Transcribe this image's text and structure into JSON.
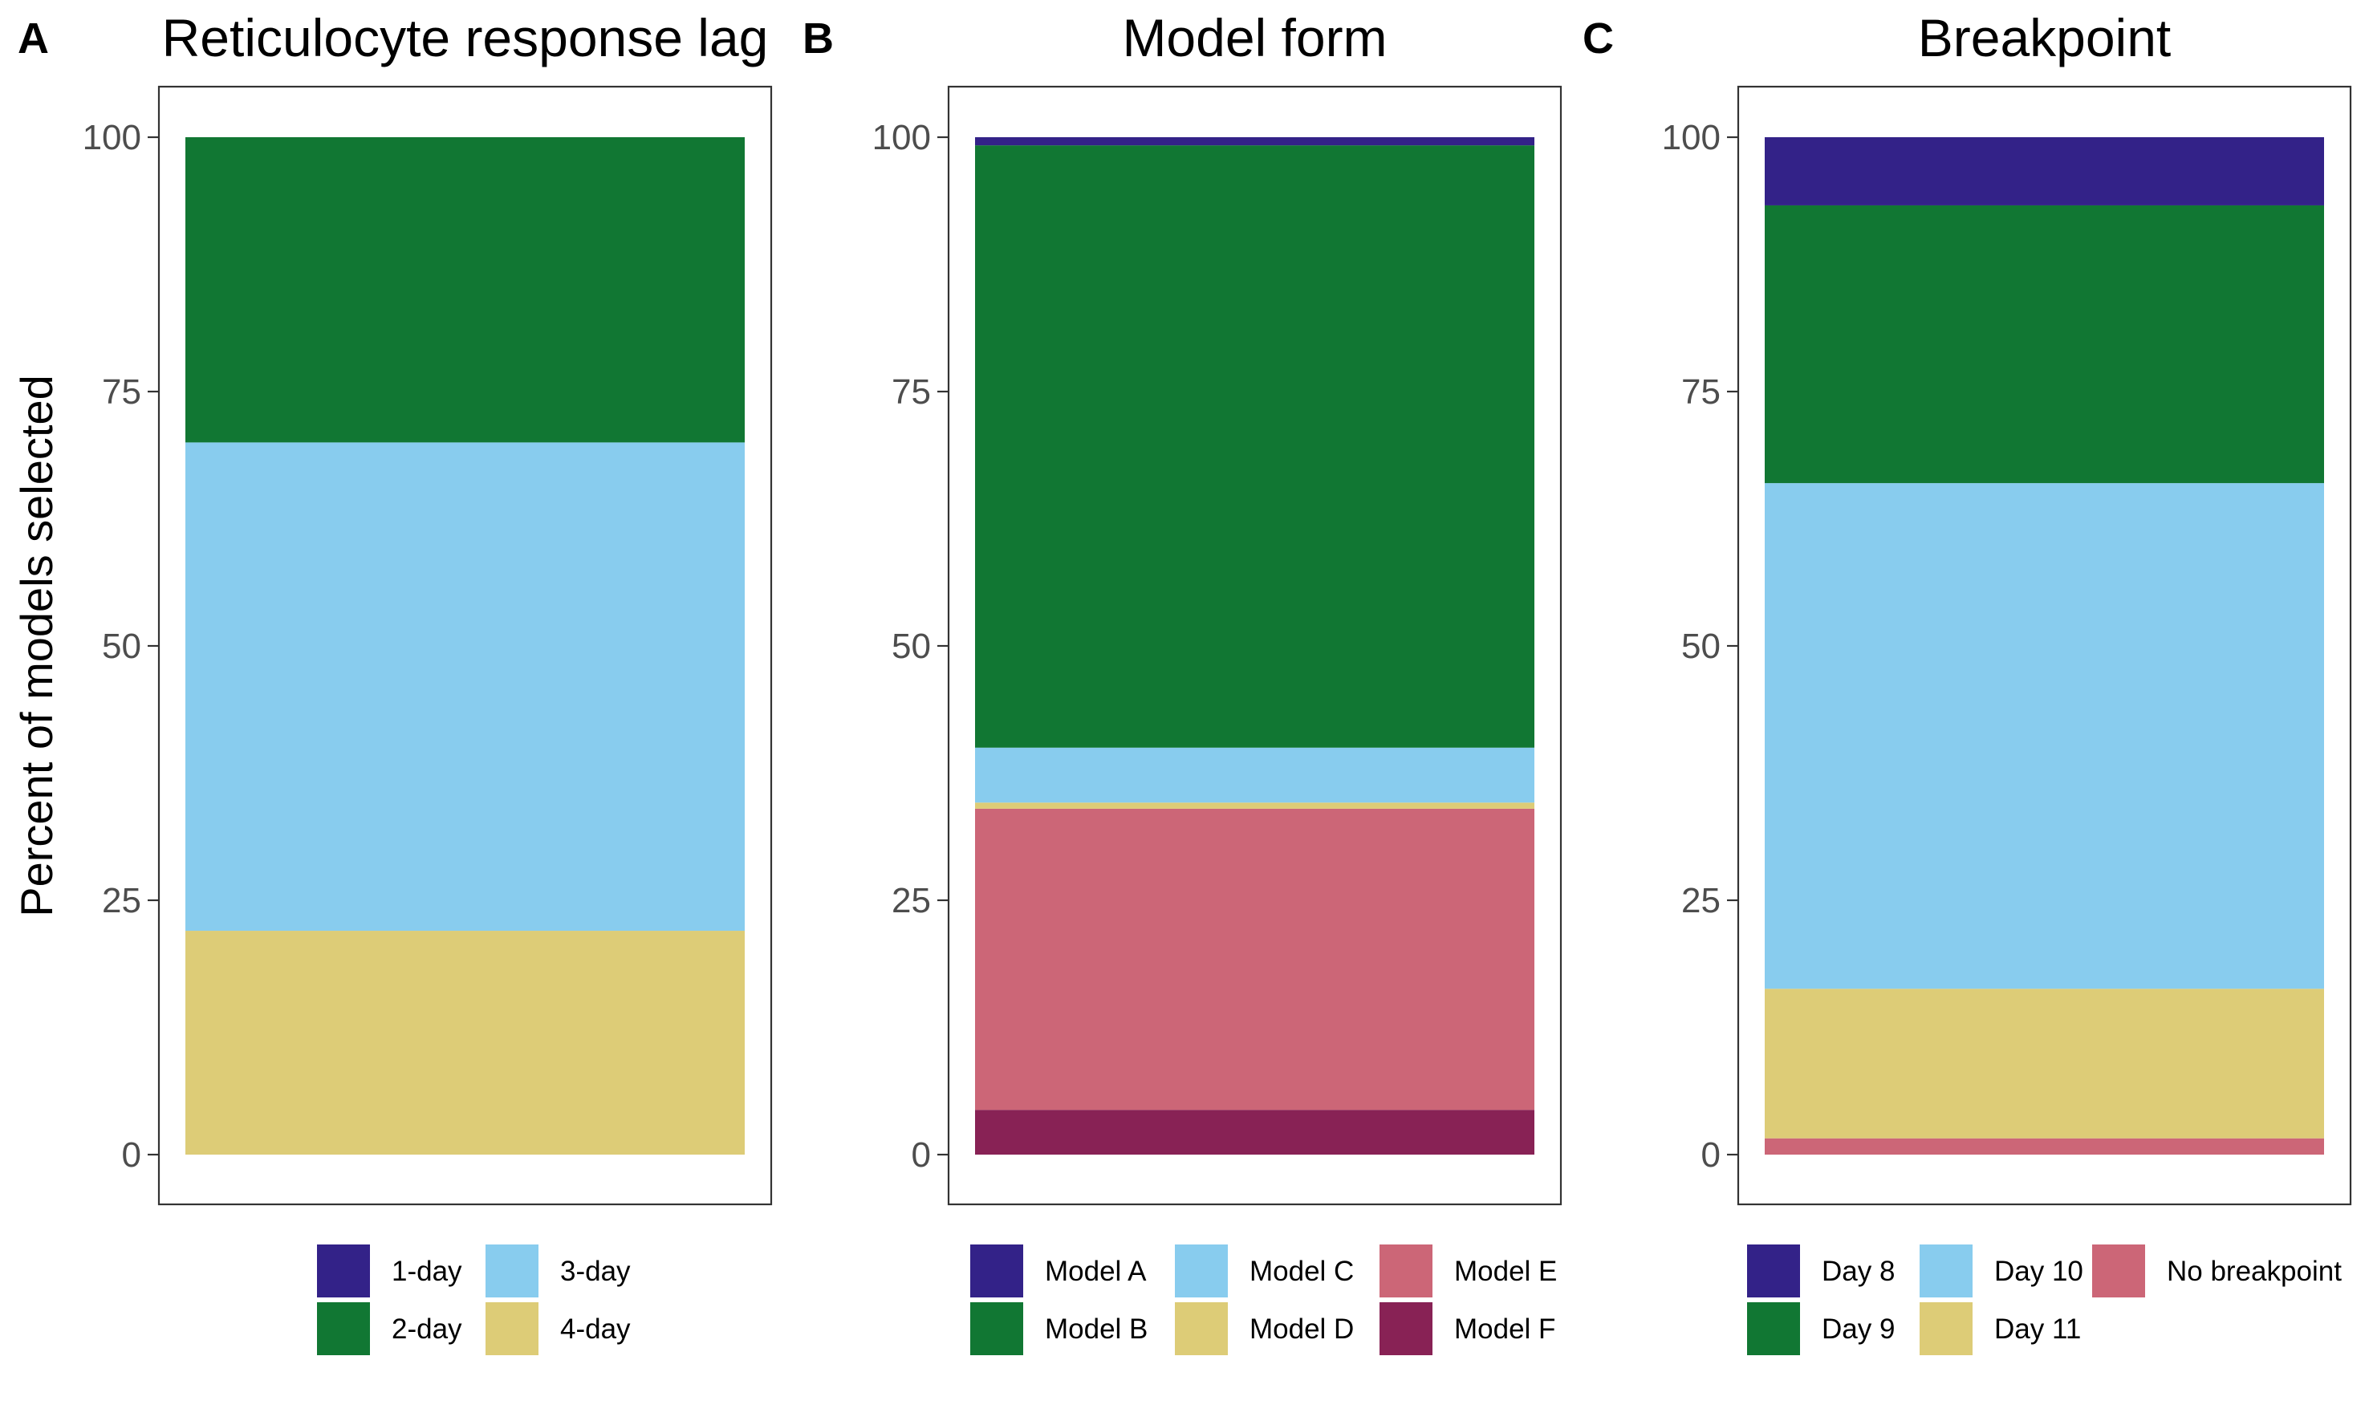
{
  "y_axis_title": "Percent of models selected",
  "chart_data": [
    {
      "type": "bar",
      "stacked": true,
      "panel": "A",
      "title": "Reticulocyte response lag",
      "ylabel": "Percent of models selected",
      "ylim": [
        0,
        100
      ],
      "yticks": [
        0,
        25,
        50,
        75,
        100
      ],
      "grid": false,
      "legend_position": "bottom",
      "series": [
        {
          "name": "4-day",
          "value": 22,
          "color": "#DDCC77"
        },
        {
          "name": "3-day",
          "value": 48,
          "color": "#88CCEE"
        },
        {
          "name": "2-day",
          "value": 30,
          "color": "#117733"
        },
        {
          "name": "1-day",
          "value": 0,
          "color": "#332288"
        }
      ],
      "legend": [
        {
          "name": "1-day",
          "color": "#332288"
        },
        {
          "name": "2-day",
          "color": "#117733"
        },
        {
          "name": "3-day",
          "color": "#88CCEE"
        },
        {
          "name": "4-day",
          "color": "#DDCC77"
        }
      ]
    },
    {
      "type": "bar",
      "stacked": true,
      "panel": "B",
      "title": "Model form",
      "ylim": [
        0,
        100
      ],
      "yticks": [
        0,
        25,
        50,
        75,
        100
      ],
      "grid": false,
      "legend_position": "bottom",
      "series": [
        {
          "name": "Model F",
          "value": 4.4,
          "color": "#882255"
        },
        {
          "name": "Model E",
          "value": 29.6,
          "color": "#CC6677"
        },
        {
          "name": "Model D",
          "value": 0.6,
          "color": "#DDCC77"
        },
        {
          "name": "Model C",
          "value": 5.4,
          "color": "#88CCEE"
        },
        {
          "name": "Model B",
          "value": 59.2,
          "color": "#117733"
        },
        {
          "name": "Model A",
          "value": 0.8,
          "color": "#332288"
        }
      ],
      "legend": [
        {
          "name": "Model A",
          "color": "#332288"
        },
        {
          "name": "Model B",
          "color": "#117733"
        },
        {
          "name": "Model C",
          "color": "#88CCEE"
        },
        {
          "name": "Model D",
          "color": "#DDCC77"
        },
        {
          "name": "Model E",
          "color": "#CC6677"
        },
        {
          "name": "Model F",
          "color": "#882255"
        }
      ]
    },
    {
      "type": "bar",
      "stacked": true,
      "panel": "C",
      "title": "Breakpoint",
      "ylim": [
        0,
        100
      ],
      "yticks": [
        0,
        25,
        50,
        75,
        100
      ],
      "grid": false,
      "legend_position": "bottom",
      "series": [
        {
          "name": "No breakpoint",
          "value": 1.6,
          "color": "#CC6677"
        },
        {
          "name": "Day 11",
          "value": 14.7,
          "color": "#DDCC77"
        },
        {
          "name": "Day 10",
          "value": 49.7,
          "color": "#88CCEE"
        },
        {
          "name": "Day 9",
          "value": 27.3,
          "color": "#117733"
        },
        {
          "name": "Day 8",
          "value": 6.7,
          "color": "#332288"
        }
      ],
      "legend": [
        {
          "name": "Day 8",
          "color": "#332288"
        },
        {
          "name": "Day 9",
          "color": "#117733"
        },
        {
          "name": "Day 10",
          "color": "#88CCEE"
        },
        {
          "name": "Day 11",
          "color": "#DDCC77"
        },
        {
          "name": "No breakpoint",
          "color": "#CC6677"
        }
      ]
    }
  ]
}
